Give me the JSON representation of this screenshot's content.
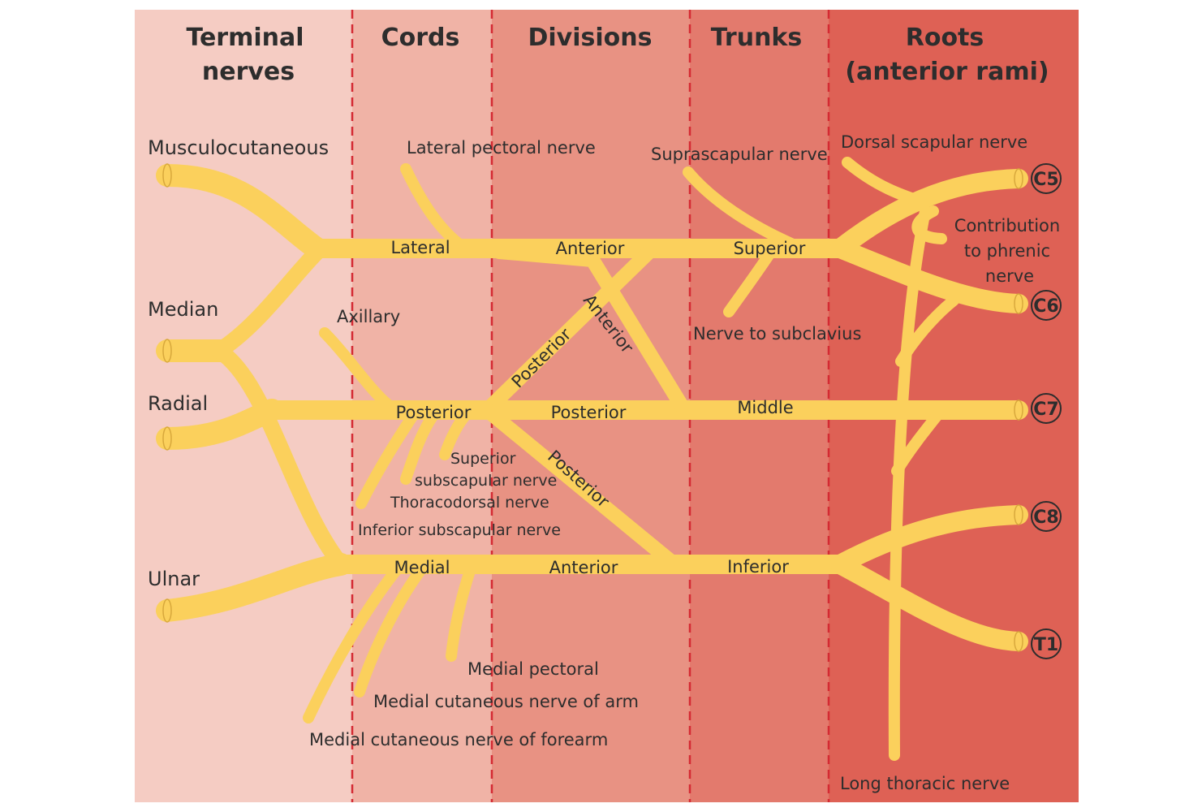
{
  "colors": {
    "terminal_band": "#f5ccc3",
    "cords_band": "#f0b3a6",
    "divisions_band": "#e89283",
    "trunks_band": "#e37a6d",
    "roots_band": "#de6155",
    "divider": "#d42a33",
    "nerve": "#fbd05c",
    "text": "#2d2d2d"
  },
  "headers": {
    "terminal_line1": "Terminal",
    "terminal_line2": "nerves",
    "cords": "Cords",
    "divisions": "Divisions",
    "trunks": "Trunks",
    "roots_line1": "Roots",
    "roots_line2": "(anterior rami)"
  },
  "terminal_nerves": {
    "musculocutaneous": "Musculocutaneous",
    "median": "Median",
    "radial": "Radial",
    "ulnar": "Ulnar"
  },
  "cords": {
    "lateral": "Lateral",
    "posterior": "Posterior",
    "medial": "Medial"
  },
  "divisions": {
    "lateral_anterior": "Anterior",
    "anterior_diagonal": "Anterior",
    "posterior_diagonal_upper": "Posterior",
    "middle_posterior": "Posterior",
    "posterior_diagonal_lower": "Posterior",
    "medial_anterior": "Anterior"
  },
  "trunks": {
    "superior": "Superior",
    "middle": "Middle",
    "inferior": "Inferior"
  },
  "roots": [
    "C5",
    "C6",
    "C7",
    "C8",
    "T1"
  ],
  "branches": {
    "lateral_pectoral": "Lateral pectoral nerve",
    "axillary": "Axillary",
    "superior_subscapular_line1": "Superior",
    "superior_subscapular_line2": "subscapular nerve",
    "thoracodorsal": "Thoracodorsal nerve",
    "inferior_subscapular": "Inferior subscapular nerve",
    "medial_pectoral": "Medial pectoral",
    "medial_cutaneous_arm": "Medial cutaneous nerve of arm",
    "medial_cutaneous_forearm": "Medial cutaneous nerve of forearm",
    "suprascapular": "Suprascapular nerve",
    "nerve_to_subclavius": "Nerve to subclavius",
    "dorsal_scapular": "Dorsal scapular nerve",
    "phrenic_line1": "Contribution",
    "phrenic_line2": "to phrenic",
    "phrenic_line3": "nerve",
    "long_thoracic": "Long thoracic nerve"
  }
}
